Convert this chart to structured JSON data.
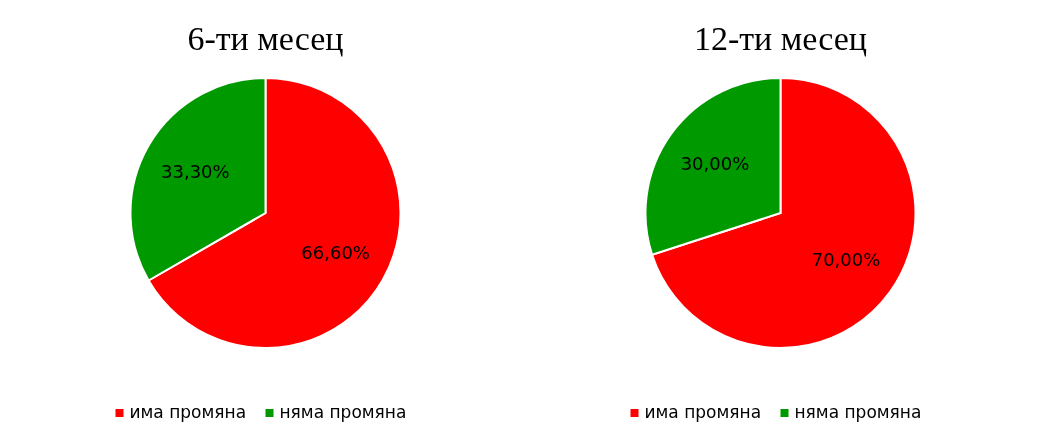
{
  "chart_data": [
    {
      "type": "pie",
      "title": "6-ти месец",
      "categories": [
        "има промяна",
        "няма промяна"
      ],
      "values": [
        66.6,
        33.3
      ],
      "colors": [
        "#ff0000",
        "#009900"
      ],
      "value_labels": [
        "66,60%",
        "33,30%"
      ],
      "legend": "bottom"
    },
    {
      "type": "pie",
      "title": "12-ти месец",
      "categories": [
        "има промяна",
        "няма промяна"
      ],
      "values": [
        70,
        30
      ],
      "colors": [
        "#ff0000",
        "#009900"
      ],
      "value_labels": [
        "70,00%",
        "30,00%"
      ],
      "legend": "bottom"
    }
  ]
}
